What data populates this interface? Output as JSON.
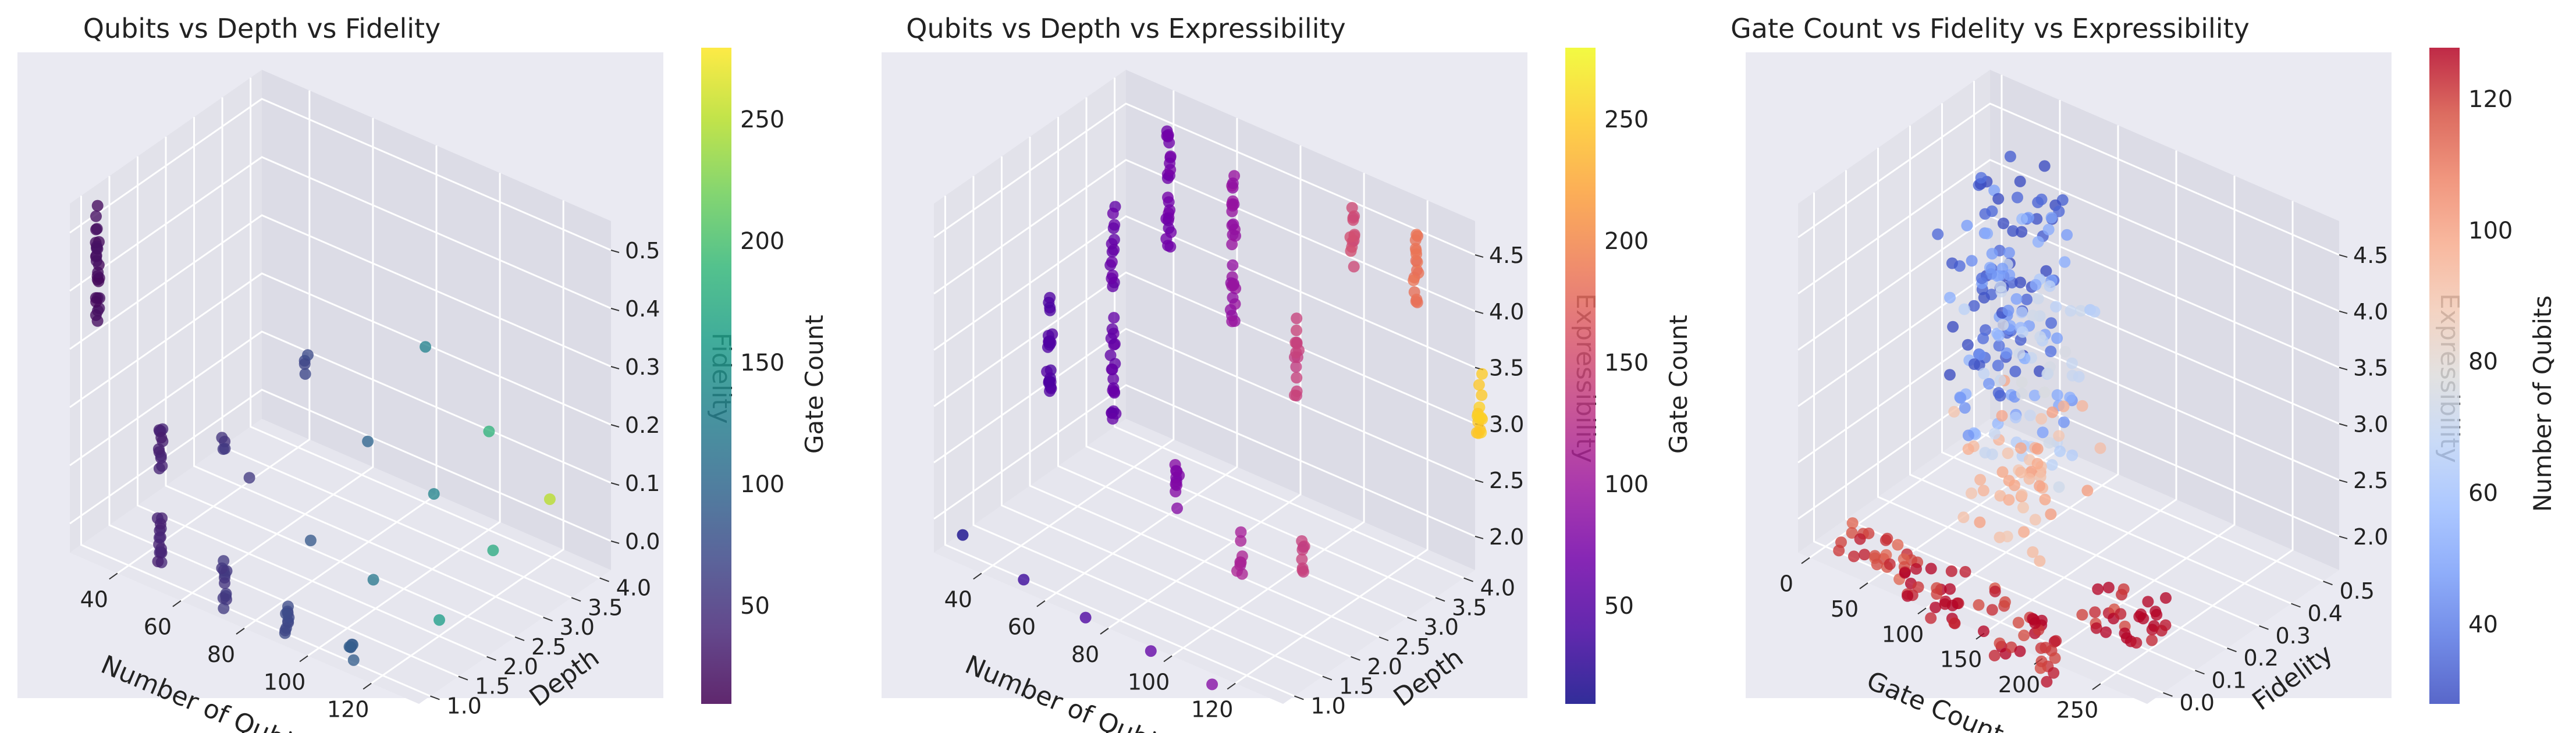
{
  "chart_data": [
    {
      "type": "scatter3d",
      "title": "Qubits vs Depth vs Fidelity",
      "xlabel": "Number of Qubits",
      "ylabel": "Depth",
      "zlabel": "Fidelity",
      "colorbar_label": "Gate Count",
      "colormap": "viridis",
      "color_range": [
        10,
        280
      ],
      "xlim": [
        25,
        135
      ],
      "ylim": [
        0.8,
        4.2
      ],
      "zlim": [
        -0.05,
        0.55
      ],
      "xticks": [
        "40",
        "60",
        "80",
        "100",
        "120"
      ],
      "yticks": [
        "1.0",
        "1.5",
        "2.0",
        "2.5",
        "3.0",
        "3.5",
        "4.0"
      ],
      "zticks": [
        "0.0",
        "0.1",
        "0.2",
        "0.3",
        "0.4",
        "0.5"
      ],
      "cb_ticks": [
        "50",
        "100",
        "150",
        "200",
        "250"
      ],
      "clusters": [
        {
          "x": 30,
          "y": 1,
          "z": [
            0.32,
            0.55
          ],
          "n": 26,
          "c": 20
        },
        {
          "x": 50,
          "y": 1,
          "z": [
            0.13,
            0.24
          ],
          "n": 12,
          "c": 35
        },
        {
          "x": 50,
          "y": 1,
          "z": [
            -0.03,
            0.08
          ],
          "n": 14,
          "c": 36
        },
        {
          "x": 70,
          "y": 1,
          "z": [
            0.22,
            0.24
          ],
          "n": 4,
          "c": 52
        },
        {
          "x": 70,
          "y": 1,
          "z": [
            -0.06,
            0.04
          ],
          "n": 12,
          "c": 55
        },
        {
          "x": 90,
          "y": 1,
          "z": [
            -0.06,
            0.0
          ],
          "n": 10,
          "c": 70
        },
        {
          "x": 110,
          "y": 1,
          "z": [
            -0.05,
            -0.02
          ],
          "n": 6,
          "c": 90
        },
        {
          "x": 60,
          "y": 3,
          "z": [
            0.18,
            0.25
          ],
          "n": 4,
          "c": 70
        },
        {
          "x": 80,
          "y": 3,
          "z": [
            0.12,
            0.12
          ],
          "n": 1,
          "c": 100
        },
        {
          "x": 100,
          "y": 3,
          "z": [
            0.08,
            0.08
          ],
          "n": 1,
          "c": 135
        },
        {
          "x": 120,
          "y": 3,
          "z": [
            0.03,
            0.03
          ],
          "n": 1,
          "c": 175
        },
        {
          "x": 60,
          "y": 2,
          "z": [
            0.08,
            0.08
          ],
          "n": 1,
          "c": 60
        },
        {
          "x": 80,
          "y": 2,
          "z": [
            0.02,
            0.02
          ],
          "n": 1,
          "c": 90
        },
        {
          "x": 100,
          "y": 2,
          "z": [
            0.0,
            0.0
          ],
          "n": 1,
          "c": 120
        },
        {
          "x": 120,
          "y": 2,
          "z": [
            -0.02,
            -0.02
          ],
          "n": 1,
          "c": 160
        },
        {
          "x": 80,
          "y": 4,
          "z": [
            0.22,
            0.22
          ],
          "n": 1,
          "c": 130
        },
        {
          "x": 100,
          "y": 4,
          "z": [
            0.12,
            0.12
          ],
          "n": 1,
          "c": 190
        },
        {
          "x": 120,
          "y": 4,
          "z": [
            0.05,
            0.05
          ],
          "n": 1,
          "c": 250
        }
      ]
    },
    {
      "type": "scatter3d",
      "title": "Qubits vs Depth vs Expressibility",
      "xlabel": "Number of Qubits",
      "ylabel": "Depth",
      "zlabel": "Expressibility",
      "colorbar_label": "Gate Count",
      "colormap": "plasma",
      "color_range": [
        10,
        280
      ],
      "xlim": [
        25,
        135
      ],
      "ylim": [
        0.8,
        4.2
      ],
      "zlim": [
        1.7,
        4.8
      ],
      "xticks": [
        "40",
        "60",
        "80",
        "100",
        "120"
      ],
      "yticks": [
        "1.0",
        "1.5",
        "2.0",
        "2.5",
        "3.0",
        "3.5",
        "4.0"
      ],
      "zticks": [
        "2.0",
        "2.5",
        "3.0",
        "3.5",
        "4.0",
        "4.5"
      ],
      "cb_ticks": [
        "50",
        "100",
        "150",
        "200",
        "250"
      ],
      "clusters": [
        {
          "x": 30,
          "y": 1,
          "z": [
            1.85,
            1.85
          ],
          "n": 1,
          "c": 15
        },
        {
          "x": 50,
          "y": 1,
          "z": [
            1.7,
            1.7
          ],
          "n": 1,
          "c": 30
        },
        {
          "x": 70,
          "y": 1,
          "z": [
            1.6,
            1.6
          ],
          "n": 1,
          "c": 45
        },
        {
          "x": 90,
          "y": 1,
          "z": [
            1.55,
            1.55
          ],
          "n": 1,
          "c": 60
        },
        {
          "x": 110,
          "y": 1,
          "z": [
            1.5,
            1.5
          ],
          "n": 1,
          "c": 80
        },
        {
          "x": 40,
          "y": 2,
          "z": [
            2.9,
            3.8
          ],
          "n": 22,
          "c": 45
        },
        {
          "x": 60,
          "y": 2,
          "z": [
            2.9,
            4.8
          ],
          "n": 34,
          "c": 60
        },
        {
          "x": 80,
          "y": 2,
          "z": [
            2.3,
            2.8
          ],
          "n": 10,
          "c": 80
        },
        {
          "x": 100,
          "y": 2,
          "z": [
            2.0,
            2.4
          ],
          "n": 8,
          "c": 110
        },
        {
          "x": 120,
          "y": 2,
          "z": [
            2.2,
            2.6
          ],
          "n": 8,
          "c": 140
        },
        {
          "x": 60,
          "y": 3,
          "z": [
            4.0,
            5.2
          ],
          "n": 24,
          "c": 70
        },
        {
          "x": 80,
          "y": 3,
          "z": [
            3.6,
            5.0
          ],
          "n": 28,
          "c": 95
        },
        {
          "x": 100,
          "y": 3,
          "z": [
            3.2,
            4.0
          ],
          "n": 14,
          "c": 140
        },
        {
          "x": 100,
          "y": 4,
          "z": [
            4.0,
            4.6
          ],
          "n": 12,
          "c": 150
        },
        {
          "x": 120,
          "y": 4,
          "z": [
            3.9,
            4.6
          ],
          "n": 16,
          "c": 185
        },
        {
          "x": 140,
          "y": 4,
          "z": [
            3.0,
            3.6
          ],
          "n": 14,
          "c": 250
        }
      ]
    },
    {
      "type": "scatter3d",
      "title": "Gate Count vs Fidelity vs Expressibility",
      "xlabel": "Gate Count",
      "ylabel": "Fidelity",
      "zlabel": "Expressibility",
      "colorbar_label": "Number of Qubits",
      "colormap": "coolwarm",
      "color_range": [
        28,
        128
      ],
      "xlim": [
        -10,
        290
      ],
      "ylim": [
        -0.05,
        0.55
      ],
      "zlim": [
        1.7,
        4.8
      ],
      "xticks": [
        "0",
        "50",
        "100",
        "150",
        "200",
        "250"
      ],
      "yticks": [
        "0.0",
        "0.1",
        "0.2",
        "0.3",
        "0.4",
        "0.5"
      ],
      "zticks": [
        "2.0",
        "2.5",
        "3.0",
        "3.5",
        "4.0",
        "4.5"
      ],
      "cb_ticks": [
        "40",
        "60",
        "80",
        "100",
        "120"
      ],
      "clouds": [
        {
          "x": [
            10,
            70
          ],
          "y": [
            0.3,
            0.55
          ],
          "z": [
            2.6,
            4.4
          ],
          "n": 70,
          "c": 30
        },
        {
          "x": [
            30,
            100
          ],
          "y": [
            0.25,
            0.45
          ],
          "z": [
            2.4,
            4.2
          ],
          "n": 60,
          "c": 50
        },
        {
          "x": [
            60,
            130
          ],
          "y": [
            0.2,
            0.4
          ],
          "z": [
            2.2,
            3.9
          ],
          "n": 50,
          "c": 70
        },
        {
          "x": [
            70,
            160
          ],
          "y": [
            0.1,
            0.3
          ],
          "z": [
            1.9,
            3.2
          ],
          "n": 50,
          "c": 95
        },
        {
          "x": [
            10,
            60
          ],
          "y": [
            0.0,
            0.05
          ],
          "z": [
            1.6,
            1.9
          ],
          "n": 22,
          "c": 120
        },
        {
          "x": [
            60,
            110
          ],
          "y": [
            0.0,
            0.05
          ],
          "z": [
            1.4,
            1.9
          ],
          "n": 28,
          "c": 125
        },
        {
          "x": [
            120,
            190
          ],
          "y": [
            0.0,
            0.06
          ],
          "z": [
            1.3,
            1.8
          ],
          "n": 34,
          "c": 125
        },
        {
          "x": [
            180,
            250
          ],
          "y": [
            0.1,
            0.2
          ],
          "z": [
            1.5,
            2.0
          ],
          "n": 30,
          "c": 125
        }
      ]
    }
  ]
}
